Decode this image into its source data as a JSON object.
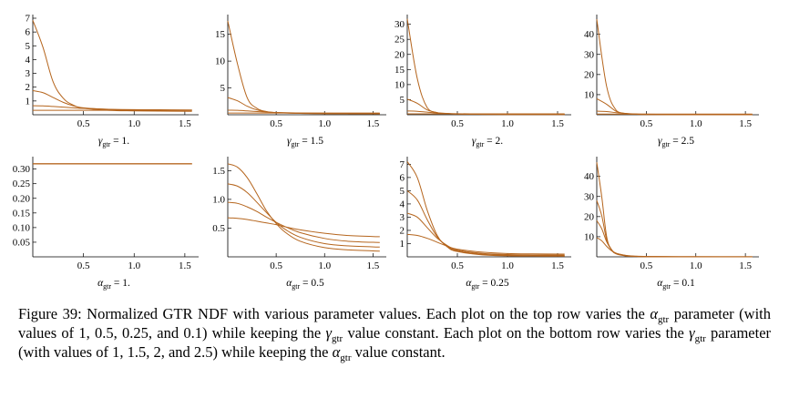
{
  "figure": {
    "number": "39",
    "caption": {
      "lead": "Figure 39: Normalized GTR NDF with various parameter values. Each plot on the top row varies the ",
      "alpha_sym": "α",
      "alpha_sub": "gtr",
      "mid1": " parameter (with values of 1, 0.5, 0.25, and 0.1) while keeping the ",
      "gamma_sym": "γ",
      "gamma_sub": "gtr",
      "mid2": " value constant. Each plot on the bottom row varies the ",
      "mid3": " parameter (with values of 1, 1.5, 2, and 2.5) while keeping the ",
      "tail": " value constant."
    }
  },
  "style": {
    "curve_color": "#b5651d",
    "axis_color": "#000000"
  },
  "chart_data": [
    {
      "type": "line",
      "panel": "top-1",
      "title": "γgtr = 1.",
      "label_sym": "γ",
      "label_sub": "gtr",
      "label_val": "= 1.",
      "xlim": [
        0,
        1.6
      ],
      "ylim": [
        0,
        7
      ],
      "xticks": [
        "0.5",
        "1.0",
        "1.5"
      ],
      "yticks": [
        "1",
        "2",
        "3",
        "4",
        "5",
        "6",
        "7"
      ],
      "x": [
        0,
        0.1,
        0.2,
        0.3,
        0.4,
        0.5,
        0.75,
        1.0,
        1.25,
        1.57
      ],
      "series": [
        {
          "values": [
            6.85,
            4.9,
            2.4,
            1.2,
            0.7,
            0.48,
            0.32,
            0.28,
            0.26,
            0.25
          ]
        },
        {
          "values": [
            1.75,
            1.6,
            1.25,
            0.9,
            0.65,
            0.5,
            0.38,
            0.33,
            0.31,
            0.31
          ]
        },
        {
          "values": [
            0.65,
            0.64,
            0.6,
            0.55,
            0.5,
            0.46,
            0.4,
            0.37,
            0.36,
            0.35
          ]
        },
        {
          "values": [
            0.32,
            0.32,
            0.32,
            0.32,
            0.32,
            0.32,
            0.32,
            0.32,
            0.32,
            0.32
          ]
        }
      ]
    },
    {
      "type": "line",
      "panel": "top-2",
      "title": "γgtr = 1.5",
      "label_sym": "γ",
      "label_sub": "gtr",
      "label_val": "= 1.5",
      "xlim": [
        0,
        1.6
      ],
      "ylim": [
        0,
        18
      ],
      "xticks": [
        "0.5",
        "1.0",
        "1.5"
      ],
      "yticks": [
        "5",
        "10",
        "15"
      ],
      "x": [
        0,
        0.1,
        0.2,
        0.3,
        0.4,
        0.5,
        0.75,
        1.0,
        1.25,
        1.57
      ],
      "series": [
        {
          "values": [
            17.5,
            9.5,
            3.2,
            1.2,
            0.6,
            0.4,
            0.25,
            0.2,
            0.18,
            0.17
          ]
        },
        {
          "values": [
            3.2,
            2.6,
            1.6,
            0.9,
            0.55,
            0.4,
            0.27,
            0.23,
            0.21,
            0.2
          ]
        },
        {
          "values": [
            0.85,
            0.82,
            0.72,
            0.6,
            0.5,
            0.42,
            0.32,
            0.27,
            0.25,
            0.24
          ]
        },
        {
          "values": [
            0.32,
            0.32,
            0.32,
            0.32,
            0.32,
            0.32,
            0.32,
            0.32,
            0.32,
            0.32
          ]
        }
      ]
    },
    {
      "type": "line",
      "panel": "top-3",
      "title": "γgtr = 2.",
      "label_sym": "γ",
      "label_sub": "gtr",
      "label_val": "= 2.",
      "xlim": [
        0,
        1.6
      ],
      "ylim": [
        0,
        32
      ],
      "xticks": [
        "0.5",
        "1.0",
        "1.5"
      ],
      "yticks": [
        "5",
        "10",
        "15",
        "20",
        "25",
        "30"
      ],
      "x": [
        0,
        0.1,
        0.2,
        0.3,
        0.4,
        0.5,
        0.75,
        1.0,
        1.25,
        1.57
      ],
      "series": [
        {
          "values": [
            31.8,
            12,
            2.3,
            0.7,
            0.35,
            0.22,
            0.12,
            0.09,
            0.08,
            0.08
          ]
        },
        {
          "values": [
            5.2,
            3.8,
            1.6,
            0.7,
            0.4,
            0.26,
            0.15,
            0.12,
            0.11,
            0.1
          ]
        },
        {
          "values": [
            1.25,
            1.15,
            0.85,
            0.6,
            0.45,
            0.35,
            0.24,
            0.2,
            0.18,
            0.17
          ]
        },
        {
          "values": [
            0.32,
            0.32,
            0.32,
            0.32,
            0.32,
            0.32,
            0.32,
            0.32,
            0.32,
            0.32
          ]
        }
      ]
    },
    {
      "type": "line",
      "panel": "top-4",
      "title": "γgtr = 2.5",
      "label_sym": "γ",
      "label_sub": "gtr",
      "label_val": "= 2.5",
      "xlim": [
        0,
        1.6
      ],
      "ylim": [
        0,
        48
      ],
      "xticks": [
        "0.5",
        "1.0",
        "1.5"
      ],
      "yticks": [
        "10",
        "20",
        "30",
        "40"
      ],
      "x": [
        0,
        0.1,
        0.2,
        0.3,
        0.4,
        0.5,
        0.75,
        1.0,
        1.25,
        1.57
      ],
      "series": [
        {
          "values": [
            47.5,
            14,
            2.0,
            0.5,
            0.22,
            0.12,
            0.06,
            0.04,
            0.03,
            0.03
          ]
        },
        {
          "values": [
            8.0,
            5.2,
            1.6,
            0.6,
            0.28,
            0.17,
            0.09,
            0.07,
            0.06,
            0.06
          ]
        },
        {
          "values": [
            1.8,
            1.6,
            1.0,
            0.6,
            0.4,
            0.28,
            0.17,
            0.13,
            0.12,
            0.11
          ]
        },
        {
          "values": [
            0.32,
            0.32,
            0.32,
            0.32,
            0.32,
            0.32,
            0.32,
            0.32,
            0.32,
            0.32
          ]
        }
      ]
    },
    {
      "type": "line",
      "panel": "bottom-1",
      "title": "αgtr = 1.",
      "label_sym": "α",
      "label_sub": "gtr",
      "label_val": "= 1.",
      "xlim": [
        0,
        1.6
      ],
      "ylim": [
        0,
        0.33
      ],
      "xticks": [
        "0.5",
        "1.0",
        "1.5"
      ],
      "yticks": [
        "0.05",
        "0.10",
        "0.15",
        "0.20",
        "0.25",
        "0.30"
      ],
      "x": [
        0,
        0.25,
        0.5,
        0.75,
        1.0,
        1.25,
        1.57
      ],
      "series": [
        {
          "values": [
            0.318,
            0.318,
            0.318,
            0.318,
            0.318,
            0.318,
            0.318
          ]
        },
        {
          "values": [
            0.318,
            0.318,
            0.318,
            0.318,
            0.318,
            0.318,
            0.318
          ]
        },
        {
          "values": [
            0.318,
            0.318,
            0.318,
            0.318,
            0.318,
            0.318,
            0.318
          ]
        },
        {
          "values": [
            0.318,
            0.318,
            0.318,
            0.318,
            0.318,
            0.318,
            0.318
          ]
        }
      ]
    },
    {
      "type": "line",
      "panel": "bottom-2",
      "title": "αgtr = 0.5",
      "label_sym": "α",
      "label_sub": "gtr",
      "label_val": "= 0.5",
      "xlim": [
        0,
        1.6
      ],
      "ylim": [
        0,
        1.68
      ],
      "xticks": [
        "0.5",
        "1.0",
        "1.5"
      ],
      "yticks": [
        "0.5",
        "1.0",
        "1.5"
      ],
      "x": [
        0,
        0.1,
        0.2,
        0.3,
        0.4,
        0.5,
        0.6,
        0.75,
        1.0,
        1.25,
        1.57
      ],
      "series": [
        {
          "values": [
            1.62,
            1.56,
            1.38,
            1.1,
            0.8,
            0.58,
            0.42,
            0.27,
            0.16,
            0.12,
            0.1
          ]
        },
        {
          "values": [
            1.27,
            1.23,
            1.12,
            0.95,
            0.77,
            0.6,
            0.47,
            0.34,
            0.23,
            0.19,
            0.17
          ]
        },
        {
          "values": [
            0.95,
            0.93,
            0.87,
            0.79,
            0.69,
            0.6,
            0.52,
            0.42,
            0.32,
            0.27,
            0.25
          ]
        },
        {
          "values": [
            0.68,
            0.67,
            0.65,
            0.62,
            0.59,
            0.56,
            0.52,
            0.47,
            0.41,
            0.37,
            0.35
          ]
        }
      ]
    },
    {
      "type": "line",
      "panel": "bottom-3",
      "title": "αgtr = 0.25",
      "label_sym": "α",
      "label_sub": "gtr",
      "label_val": "= 0.25",
      "xlim": [
        0,
        1.6
      ],
      "ylim": [
        0,
        7.3
      ],
      "xticks": [
        "0.5",
        "1.0",
        "1.5"
      ],
      "yticks": [
        "1",
        "2",
        "3",
        "4",
        "5",
        "6",
        "7"
      ],
      "x": [
        0,
        0.1,
        0.2,
        0.3,
        0.4,
        0.5,
        0.75,
        1.0,
        1.25,
        1.57
      ],
      "series": [
        {
          "values": [
            7.2,
            6.0,
            3.5,
            1.6,
            0.75,
            0.4,
            0.15,
            0.08,
            0.06,
            0.05
          ]
        },
        {
          "values": [
            5.0,
            4.3,
            2.8,
            1.5,
            0.8,
            0.45,
            0.2,
            0.12,
            0.09,
            0.08
          ]
        },
        {
          "values": [
            3.3,
            3.0,
            2.2,
            1.4,
            0.85,
            0.52,
            0.26,
            0.17,
            0.14,
            0.13
          ]
        },
        {
          "values": [
            1.7,
            1.62,
            1.4,
            1.1,
            0.8,
            0.58,
            0.35,
            0.25,
            0.22,
            0.21
          ]
        }
      ]
    },
    {
      "type": "line",
      "panel": "bottom-4",
      "title": "αgtr = 0.1",
      "label_sym": "α",
      "label_sub": "gtr",
      "label_val": "= 0.1",
      "xlim": [
        0,
        1.6
      ],
      "ylim": [
        0,
        48
      ],
      "xticks": [
        "0.5",
        "1.0",
        "1.5"
      ],
      "yticks": [
        "10",
        "20",
        "30",
        "40"
      ],
      "x": [
        0,
        0.05,
        0.1,
        0.15,
        0.2,
        0.3,
        0.4,
        0.5,
        0.75,
        1.0,
        1.57
      ],
      "series": [
        {
          "values": [
            47.0,
            30.0,
            10.0,
            3.5,
            1.4,
            0.4,
            0.15,
            0.08,
            0.03,
            0.02,
            0.01
          ]
        },
        {
          "values": [
            28.0,
            20.5,
            8.5,
            3.5,
            1.6,
            0.5,
            0.2,
            0.11,
            0.05,
            0.03,
            0.02
          ]
        },
        {
          "values": [
            18.0,
            14.0,
            7.5,
            3.5,
            1.7,
            0.6,
            0.25,
            0.14,
            0.06,
            0.04,
            0.03
          ]
        },
        {
          "values": [
            9.5,
            8.0,
            5.2,
            3.0,
            1.7,
            0.7,
            0.32,
            0.18,
            0.08,
            0.05,
            0.04
          ]
        }
      ]
    }
  ]
}
